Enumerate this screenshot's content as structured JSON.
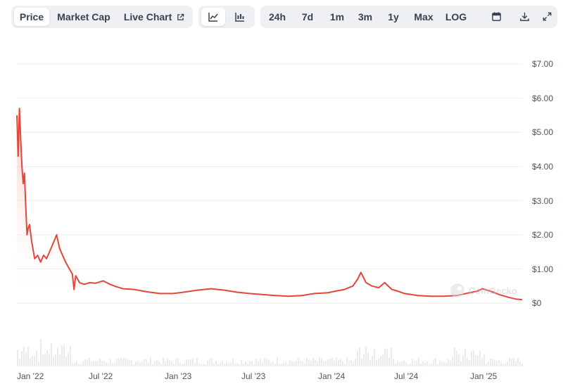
{
  "toolbar": {
    "view_tabs": [
      "Price",
      "Market Cap",
      "Live Chart"
    ],
    "range_buttons": [
      "24h",
      "7d",
      "1m",
      "3m",
      "1y",
      "Max",
      "LOG"
    ],
    "icons": [
      "line-chart-icon",
      "candlestick-icon",
      "external-link-icon",
      "calendar-icon",
      "download-icon",
      "expand-icon"
    ]
  },
  "watermark": "CoinGecko",
  "colors": {
    "line": "#e3463c",
    "fill": "#f8c9c5",
    "grid": "#eceef2",
    "volume": "#e9ebef"
  },
  "chart_data": {
    "type": "area",
    "title": "",
    "xlabel": "",
    "ylabel": "",
    "y_tick_labels": [
      "$7.00",
      "$6.00",
      "$5.00",
      "$4.00",
      "$3.00",
      "$2.00",
      "$1.00",
      "$0"
    ],
    "x_tick_labels": [
      "Jan '22",
      "Jul '22",
      "Jan '23",
      "Jul '23",
      "Jan '24",
      "Jul '24",
      "Jan '25"
    ],
    "ylim": [
      0,
      7
    ],
    "xlim": [
      "2021-12-28",
      "2025-04-05"
    ],
    "grid": true,
    "series": [
      {
        "x": [
          "2021-12-28",
          "2021-12-31",
          "2022-01-03",
          "2022-01-06",
          "2022-01-09",
          "2022-01-12",
          "2022-01-15",
          "2022-01-18",
          "2022-01-21",
          "2022-01-24",
          "2022-01-27",
          "2022-02-01",
          "2022-02-08",
          "2022-02-15",
          "2022-02-22",
          "2022-03-01",
          "2022-03-08",
          "2022-03-15",
          "2022-03-22",
          "2022-04-01",
          "2022-04-08",
          "2022-04-15",
          "2022-04-22",
          "2022-05-01",
          "2022-05-08",
          "2022-05-12",
          "2022-05-16",
          "2022-05-25",
          "2022-06-05",
          "2022-06-18",
          "2022-07-01",
          "2022-07-20",
          "2022-08-05",
          "2022-08-20",
          "2022-09-05",
          "2022-10-01",
          "2022-11-01",
          "2022-12-01",
          "2023-01-01",
          "2023-02-01",
          "2023-03-01",
          "2023-04-01",
          "2023-05-01",
          "2023-06-01",
          "2023-07-01",
          "2023-08-01",
          "2023-09-01",
          "2023-10-01",
          "2023-11-01",
          "2023-12-01",
          "2024-01-01",
          "2024-01-20",
          "2024-02-10",
          "2024-03-01",
          "2024-03-12",
          "2024-03-20",
          "2024-04-01",
          "2024-04-15",
          "2024-05-01",
          "2024-05-15",
          "2024-06-01",
          "2024-06-15",
          "2024-07-01",
          "2024-08-01",
          "2024-09-01",
          "2024-10-01",
          "2024-11-01",
          "2024-12-01",
          "2024-12-20",
          "2025-01-01",
          "2025-01-20",
          "2025-02-10",
          "2025-03-01",
          "2025-03-20",
          "2025-04-05"
        ],
        "values": [
          5.5,
          4.3,
          5.7,
          4.8,
          4.0,
          3.5,
          3.8,
          2.8,
          2.0,
          2.2,
          2.3,
          1.8,
          1.3,
          1.4,
          1.2,
          1.4,
          1.3,
          1.5,
          1.7,
          2.0,
          1.6,
          1.4,
          1.2,
          1.0,
          0.85,
          0.4,
          0.8,
          0.6,
          0.55,
          0.6,
          0.58,
          0.65,
          0.55,
          0.48,
          0.42,
          0.4,
          0.33,
          0.28,
          0.28,
          0.33,
          0.38,
          0.42,
          0.38,
          0.32,
          0.28,
          0.25,
          0.22,
          0.2,
          0.22,
          0.28,
          0.3,
          0.35,
          0.4,
          0.5,
          0.7,
          0.9,
          0.6,
          0.5,
          0.45,
          0.6,
          0.4,
          0.35,
          0.28,
          0.22,
          0.2,
          0.2,
          0.22,
          0.3,
          0.35,
          0.42,
          0.35,
          0.25,
          0.18,
          0.12,
          0.1
        ]
      }
    ]
  }
}
